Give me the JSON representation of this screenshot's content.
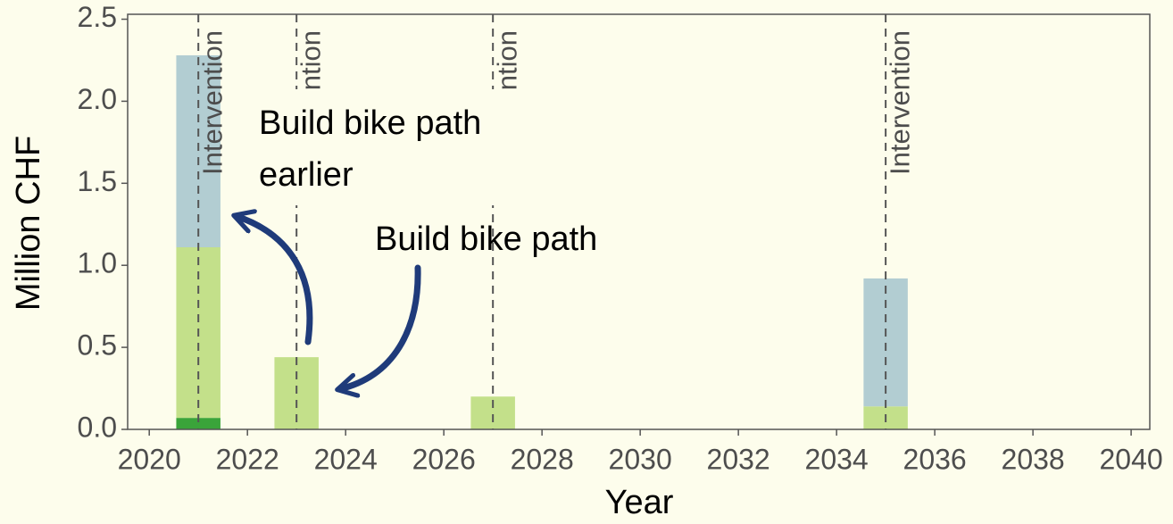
{
  "chart_data": {
    "type": "bar",
    "stacked": true,
    "x": [
      2021,
      2023,
      2027,
      2035
    ],
    "series": [
      {
        "color": "#3aa43a",
        "values": [
          0.07,
          0,
          0,
          0
        ]
      },
      {
        "color": "#c3e08a",
        "values": [
          1.04,
          0.44,
          0.2,
          0.14
        ]
      },
      {
        "color": "#b2cdd2",
        "values": [
          1.17,
          0,
          0,
          0.78
        ]
      }
    ],
    "xlabel": "Year",
    "ylabel": "Million CHF",
    "xlim": [
      2019.56,
      2040.38
    ],
    "xticks": [
      2020,
      2022,
      2024,
      2026,
      2028,
      2030,
      2032,
      2034,
      2036,
      2038,
      2040
    ],
    "ylim": [
      0,
      2.53
    ],
    "yticks": [
      {
        "value": 0,
        "label": "0.0"
      },
      0.5,
      {
        "value": 1,
        "label": "1.0"
      },
      1.5,
      {
        "value": 2,
        "label": "2.0"
      },
      2.5
    ],
    "vlines": {
      "x": [
        2021,
        2023,
        2027,
        2035
      ],
      "label": "Intervention"
    },
    "annotations": [
      {
        "lines": [
          "Build bike path",
          "earlier"
        ]
      },
      {
        "lines": [
          "Build bike path"
        ]
      }
    ]
  }
}
